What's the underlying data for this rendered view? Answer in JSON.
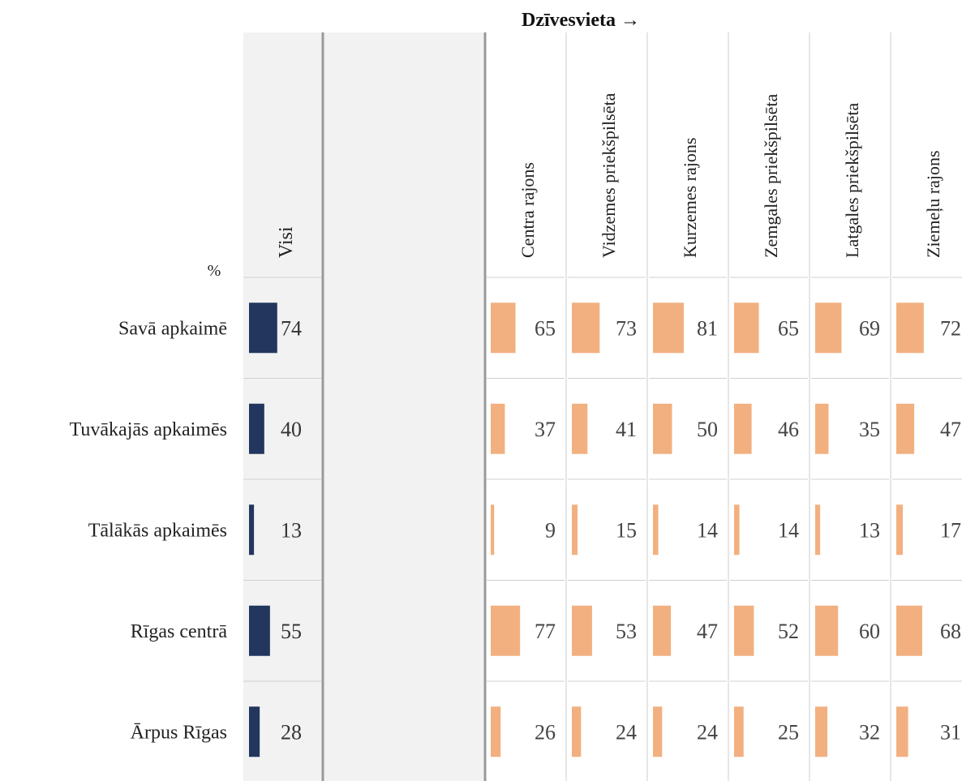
{
  "chart_data": {
    "type": "bar",
    "title": "Dzīvesvieta →",
    "unit_label": "%",
    "total_column": "Visi",
    "categories": [
      "Savā apkaimē",
      "Tuvākajās apkaimēs",
      "Tālākās apkaimēs",
      "Rīgas centrā",
      "Ārpus Rīgas"
    ],
    "total_values": [
      74,
      40,
      13,
      55,
      28
    ],
    "groups": [
      {
        "name": "Centra rajons",
        "values": [
          65,
          37,
          9,
          77,
          26
        ]
      },
      {
        "name": "Vidzemes priekšpilsēta",
        "values": [
          73,
          41,
          15,
          53,
          24
        ]
      },
      {
        "name": "Kurzemes rajons",
        "values": [
          81,
          50,
          14,
          47,
          24
        ]
      },
      {
        "name": "Zemgales priekšpilsēta",
        "values": [
          65,
          46,
          14,
          52,
          25
        ]
      },
      {
        "name": "Latgales priekšpilsēta",
        "values": [
          69,
          35,
          13,
          60,
          32
        ]
      },
      {
        "name": "Ziemeļu rajons",
        "values": [
          72,
          47,
          17,
          68,
          31
        ]
      }
    ],
    "xlim": [
      0,
      100
    ],
    "colors": {
      "total": "#22365e",
      "groups": "#f2b080",
      "panel_bg": "#f2f2f2"
    }
  }
}
